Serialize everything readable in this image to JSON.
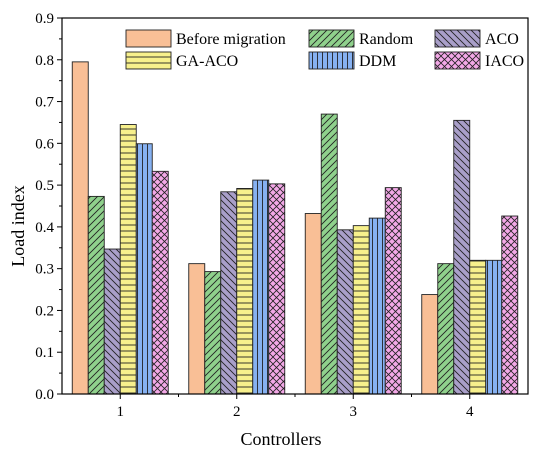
{
  "chart_data": {
    "type": "bar",
    "title": "",
    "xlabel": "Controllers",
    "ylabel": "Load index",
    "categories": [
      "1",
      "2",
      "3",
      "4"
    ],
    "ylim": [
      0,
      0.9
    ],
    "yticks": [
      "0.0",
      "0.1",
      "0.2",
      "0.3",
      "0.4",
      "0.5",
      "0.6",
      "0.7",
      "0.8",
      "0.9"
    ],
    "grid": false,
    "legend_position": "top, inside plot, three columns",
    "series": [
      {
        "name": "Before migration",
        "color": "#f9bf96",
        "pattern": "none",
        "values": [
          0.795,
          0.312,
          0.432,
          0.238
        ]
      },
      {
        "name": "Random",
        "color": "#8fd18c",
        "pattern": "diagonal-up",
        "values": [
          0.473,
          0.293,
          0.67,
          0.312
        ]
      },
      {
        "name": "ACO",
        "color": "#a99fc9",
        "pattern": "diagonal-down",
        "values": [
          0.347,
          0.484,
          0.393,
          0.655
        ]
      },
      {
        "name": "GA-ACO",
        "color": "#f7f08c",
        "pattern": "horizontal",
        "values": [
          0.645,
          0.492,
          0.403,
          0.32
        ]
      },
      {
        "name": "DDM",
        "color": "#86b1f1",
        "pattern": "vertical",
        "values": [
          0.599,
          0.512,
          0.421,
          0.32
        ]
      },
      {
        "name": "IACO",
        "color": "#f3a8e7",
        "pattern": "crosshatch",
        "values": [
          0.533,
          0.503,
          0.494,
          0.426
        ]
      }
    ]
  }
}
